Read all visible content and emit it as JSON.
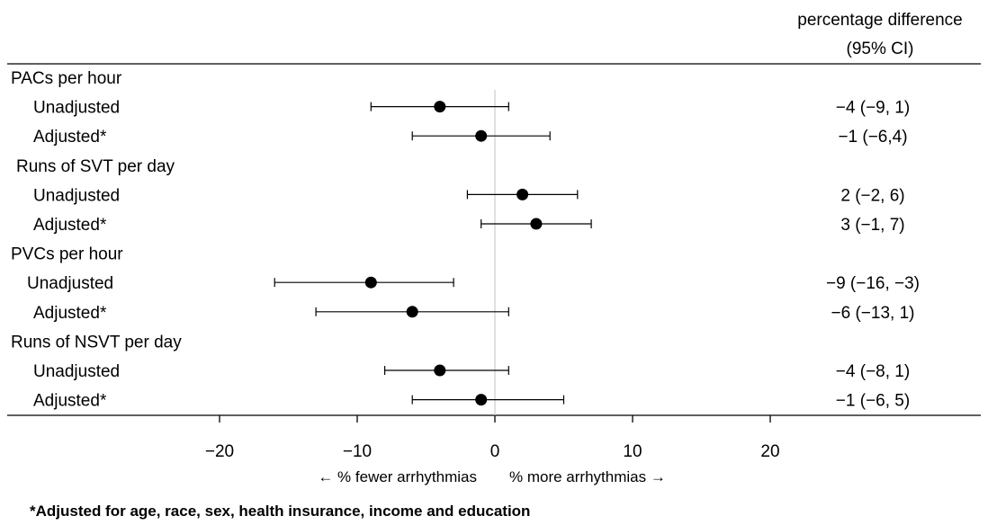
{
  "chart_data": {
    "type": "forest",
    "header": [
      "percentage difference",
      "(95% CI)"
    ],
    "xlim": [
      -30,
      35
    ],
    "xticks": [
      -20,
      -10,
      0,
      10,
      20
    ],
    "tick_labels": [
      "−20",
      "−10",
      "0",
      "10",
      "20"
    ],
    "direction_left": "←  % fewer arrhythmias",
    "direction_right": "% more arrhythmias  →",
    "footnote": "*Adjusted for age, race, sex, health insurance, income and education",
    "groups": [
      {
        "label": "PACs per hour",
        "rows": [
          {
            "label": "Unadjusted",
            "estimate": -4,
            "lower": -9,
            "upper": 1,
            "ci_text": "−4 (−9, 1)"
          },
          {
            "label": "Adjusted*",
            "estimate": -1,
            "lower": -6,
            "upper": 4,
            "ci_text": "−1 (−6,4)"
          }
        ]
      },
      {
        "label": "Runs of SVT per day",
        "rows": [
          {
            "label": "Unadjusted",
            "estimate": 2,
            "lower": -2,
            "upper": 6,
            "ci_text": "2 (−2, 6)"
          },
          {
            "label": "Adjusted*",
            "estimate": 3,
            "lower": -1,
            "upper": 7,
            "ci_text": "3 (−1, 7)"
          }
        ]
      },
      {
        "label": "PVCs per hour",
        "rows": [
          {
            "label": "Unadjusted",
            "estimate": -9,
            "lower": -16,
            "upper": -3,
            "ci_text": "−9 (−16, −3)"
          },
          {
            "label": "Adjusted*",
            "estimate": -6,
            "lower": -13,
            "upper": 1,
            "ci_text": "−6 (−13, 1)"
          }
        ]
      },
      {
        "label": "Runs of NSVT per day",
        "rows": [
          {
            "label": "Unadjusted",
            "estimate": -4,
            "lower": -8,
            "upper": 1,
            "ci_text": "−4 (−8, 1)"
          },
          {
            "label": "Adjusted*",
            "estimate": -1,
            "lower": -6,
            "upper": 5,
            "ci_text": "−1 (−6, 5)"
          }
        ]
      }
    ]
  }
}
